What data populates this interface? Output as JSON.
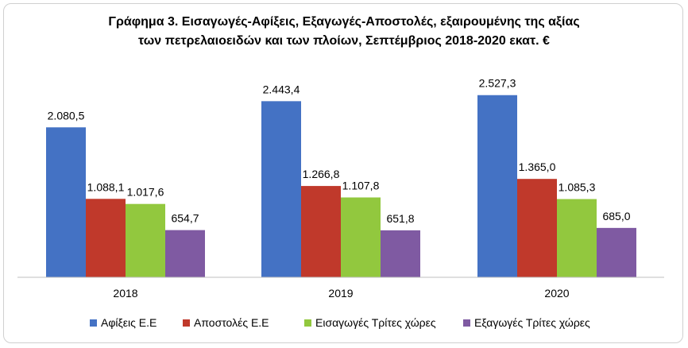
{
  "chart_data": {
    "type": "bar",
    "title_line1": "Γράφημα 3. Εισαγωγές-Αφίξεις, Εξαγωγές-Αποστολές, εξαιρουμένης της αξίας",
    "title_line2": "των πετρελαιοειδών και των πλοίων, Σεπτέμβριος 2018-2020 εκατ. €",
    "categories": [
      "2018",
      "2019",
      "2020"
    ],
    "ylim": [
      0,
      2800
    ],
    "grid": false,
    "legend_position": "bottom",
    "series": [
      {
        "name": "Αφίξεις Ε.Ε",
        "color": "#4472c4",
        "values": [
          2080.5,
          2443.4,
          2527.3
        ],
        "labels": [
          "2.080,5",
          "2.443,4",
          "2.527,3"
        ]
      },
      {
        "name": "Αποστολές  Ε.Ε",
        "color": "#c0392b",
        "values": [
          1088.1,
          1266.8,
          1365.0
        ],
        "labels": [
          "1.088,1",
          "1.266,8",
          "1.365,0"
        ]
      },
      {
        "name": "Εισαγωγές Τρίτες χώρες",
        "color": "#92c83e",
        "values": [
          1017.6,
          1107.8,
          1085.3
        ],
        "labels": [
          "1.017,6",
          "1.107,8",
          "1.085,3"
        ]
      },
      {
        "name": "Εξαγωγές Τρίτες χώρες",
        "color": "#7f5aa2",
        "values": [
          654.7,
          651.8,
          685.0
        ],
        "labels": [
          "654,7",
          "651,8",
          "685,0"
        ]
      }
    ]
  }
}
